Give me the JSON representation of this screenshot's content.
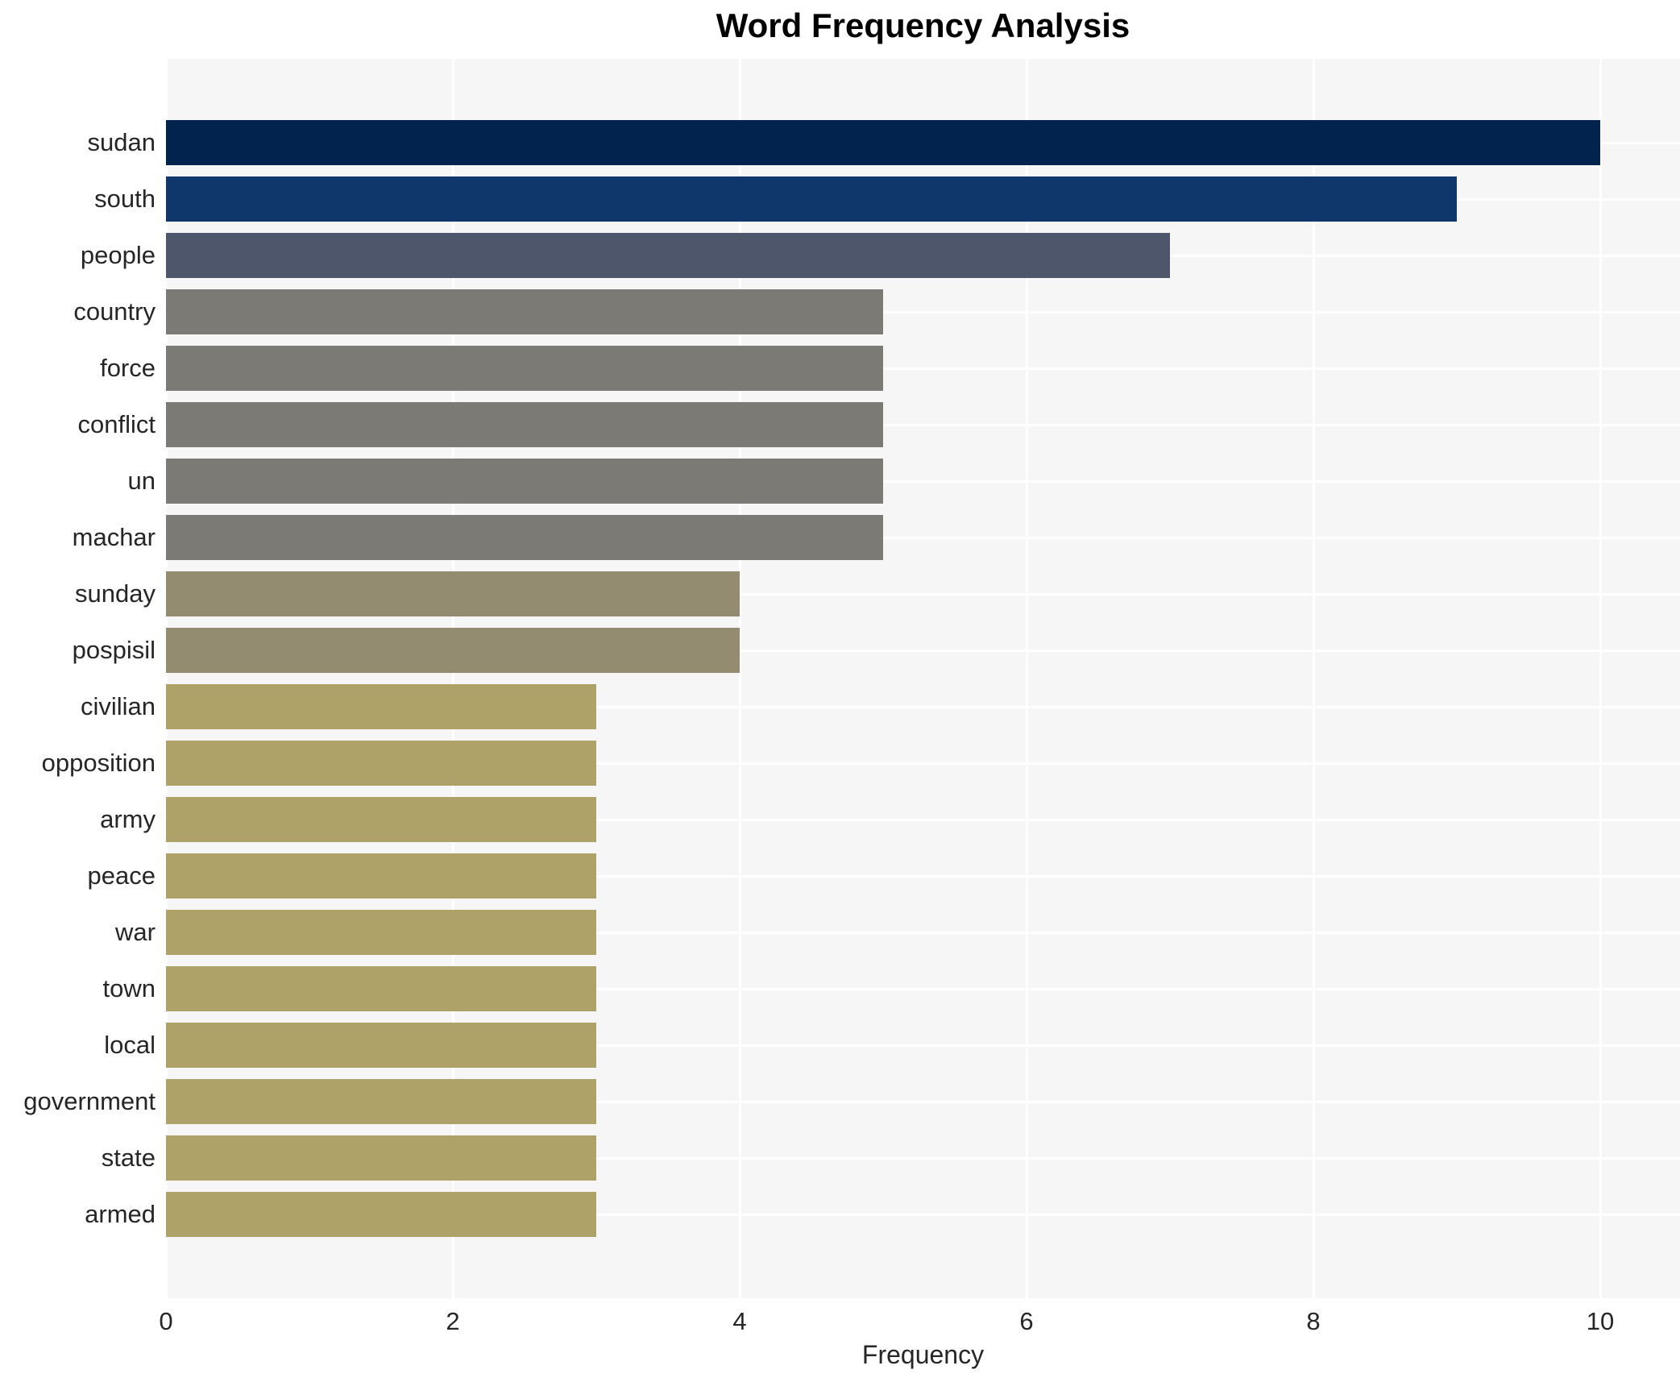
{
  "chart_data": {
    "type": "bar",
    "orientation": "horizontal",
    "title": "Word Frequency Analysis",
    "xlabel": "Frequency",
    "ylabel": "",
    "categories": [
      "sudan",
      "south",
      "people",
      "country",
      "force",
      "conflict",
      "un",
      "machar",
      "sunday",
      "pospisil",
      "civilian",
      "opposition",
      "army",
      "peace",
      "war",
      "town",
      "local",
      "government",
      "state",
      "armed"
    ],
    "values": [
      10,
      9,
      7,
      5,
      5,
      5,
      5,
      5,
      4,
      4,
      3,
      3,
      3,
      3,
      3,
      3,
      3,
      3,
      3,
      3
    ],
    "bar_colors": [
      "#02234d",
      "#10376c",
      "#4d566b",
      "#7b7a74",
      "#7b7a74",
      "#7b7a74",
      "#7b7a74",
      "#7b7a74",
      "#938c71",
      "#938c71",
      "#aea268",
      "#aea268",
      "#aea268",
      "#aea268",
      "#aea268",
      "#aea268",
      "#aea268",
      "#aea268",
      "#aea268",
      "#aea268"
    ],
    "xticks": [
      0,
      2,
      4,
      6,
      8,
      10
    ],
    "xlim": [
      0,
      10.56
    ],
    "grid": true,
    "legend_position": "none",
    "plot_background": "#f6f6f6",
    "figure_background": "#ffffff",
    "gridline_color": "#ffffff",
    "text_color": "#262626"
  }
}
